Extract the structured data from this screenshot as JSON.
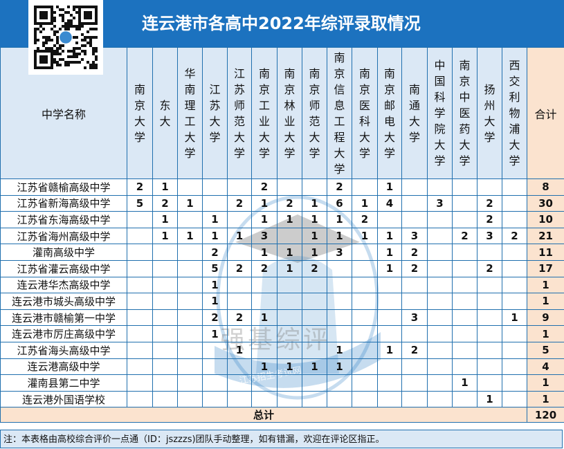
{
  "title": "连云港市各高中2022年综评录取情况",
  "watermark": {
    "main": "强基综评",
    "sub": "江苏招生考试网"
  },
  "colors": {
    "title_bar": "#1c72bf",
    "header_bg": "#dbe8f5",
    "total_bg": "#fbe3cf",
    "grid": "#1f6fae"
  },
  "table": {
    "name_header": "中学名称",
    "total_header": "合计",
    "universities": [
      "南京大学",
      "东大",
      "华南理工大学",
      "江苏大学",
      "江苏师范大学",
      "南京工业大学",
      "南京林业大学",
      "南京师范大学",
      "南京信息工程大学",
      "南京医科大学",
      "南京邮电大学",
      "南通大学",
      "中国科学院大学",
      "南京中医药大学",
      "扬州大学",
      "西交利物浦大学"
    ],
    "rows": [
      {
        "school": "江苏省赣榆高级中学",
        "values": [
          2,
          1,
          null,
          null,
          null,
          2,
          null,
          null,
          2,
          null,
          1,
          null,
          null,
          null,
          null,
          null
        ],
        "total": 8
      },
      {
        "school": "江苏省新海高级中学",
        "values": [
          5,
          2,
          1,
          null,
          2,
          1,
          2,
          1,
          6,
          1,
          4,
          null,
          3,
          null,
          2,
          null
        ],
        "total": 30
      },
      {
        "school": "江苏省东海高级中学",
        "values": [
          null,
          1,
          null,
          1,
          null,
          1,
          1,
          1,
          1,
          2,
          null,
          null,
          null,
          null,
          2,
          null
        ],
        "total": 10
      },
      {
        "school": "江苏省海州高级中学",
        "values": [
          null,
          1,
          1,
          1,
          1,
          3,
          null,
          1,
          1,
          1,
          1,
          3,
          null,
          2,
          3,
          2
        ],
        "total": 21
      },
      {
        "school": "灌南高级中学",
        "values": [
          null,
          null,
          null,
          2,
          null,
          1,
          1,
          1,
          3,
          null,
          1,
          2,
          null,
          null,
          null,
          null
        ],
        "total": 11
      },
      {
        "school": "江苏省灌云高级中学",
        "values": [
          null,
          null,
          null,
          5,
          2,
          2,
          1,
          2,
          null,
          null,
          1,
          2,
          null,
          null,
          2,
          null
        ],
        "total": 17
      },
      {
        "school": "连云港华杰高级中学",
        "values": [
          null,
          null,
          null,
          1,
          null,
          null,
          null,
          null,
          null,
          null,
          null,
          null,
          null,
          null,
          null,
          null
        ],
        "total": 1
      },
      {
        "school": "连云港市城头高级中学",
        "values": [
          null,
          null,
          null,
          1,
          null,
          null,
          null,
          null,
          null,
          null,
          null,
          null,
          null,
          null,
          null,
          null
        ],
        "total": 1
      },
      {
        "school": "连云港市赣榆第一中学",
        "values": [
          null,
          null,
          null,
          2,
          2,
          1,
          null,
          null,
          null,
          null,
          null,
          3,
          null,
          null,
          null,
          1
        ],
        "total": 9
      },
      {
        "school": "连云港市厉庄高级中学",
        "values": [
          null,
          null,
          null,
          1,
          null,
          null,
          null,
          null,
          null,
          null,
          null,
          null,
          null,
          null,
          null,
          null
        ],
        "total": 1
      },
      {
        "school": "江苏省海头高级中学",
        "values": [
          null,
          null,
          null,
          null,
          1,
          null,
          null,
          null,
          1,
          null,
          1,
          2,
          null,
          null,
          null,
          null
        ],
        "total": 5
      },
      {
        "school": "连云港高级中学",
        "values": [
          null,
          null,
          null,
          null,
          null,
          1,
          1,
          1,
          1,
          null,
          null,
          null,
          null,
          null,
          null,
          null
        ],
        "total": 4
      },
      {
        "school": "灌南县第二中学",
        "values": [
          null,
          null,
          null,
          null,
          null,
          null,
          null,
          null,
          null,
          null,
          null,
          null,
          null,
          1,
          null,
          null
        ],
        "total": 1
      },
      {
        "school": "连云港外国语学校",
        "values": [
          null,
          null,
          null,
          null,
          null,
          null,
          null,
          null,
          null,
          null,
          null,
          null,
          null,
          null,
          1,
          null
        ],
        "total": 1
      }
    ],
    "sum_label": "总计",
    "sum_total": 120
  },
  "note": "注：本表格由高校综合评价一点通（ID：jszzzs)团队手动整理，如有错漏，欢迎在评论区指正。"
}
